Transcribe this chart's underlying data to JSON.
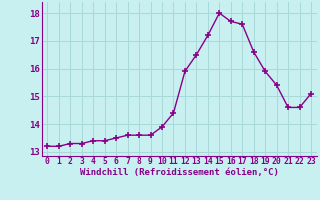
{
  "x": [
    0,
    1,
    2,
    3,
    4,
    5,
    6,
    7,
    8,
    9,
    10,
    11,
    12,
    13,
    14,
    15,
    16,
    17,
    18,
    19,
    20,
    21,
    22,
    23
  ],
  "y": [
    13.2,
    13.2,
    13.3,
    13.3,
    13.4,
    13.4,
    13.5,
    13.6,
    13.6,
    13.6,
    13.9,
    14.4,
    15.9,
    16.5,
    17.2,
    18.0,
    17.7,
    17.6,
    16.6,
    15.9,
    15.4,
    14.6,
    14.6,
    15.1
  ],
  "line_color": "#880088",
  "marker": "+",
  "markersize": 4,
  "markeredgewidth": 1.2,
  "linewidth": 1.0,
  "bg_color": "#c8f0f0",
  "grid_color": "#a8d8d8",
  "xlabel": "Windchill (Refroidissement éolien,°C)",
  "xlabel_color": "#880088",
  "xlabel_fontsize": 6.5,
  "tick_color": "#880088",
  "ytick_fontsize": 6.5,
  "xtick_fontsize": 5.8,
  "yticks": [
    13,
    14,
    15,
    16,
    17,
    18
  ],
  "ytick_labels": [
    "13",
    "14",
    "15",
    "16",
    "17",
    "18"
  ],
  "ylim": [
    12.85,
    18.4
  ],
  "xlim": [
    -0.5,
    23.5
  ]
}
